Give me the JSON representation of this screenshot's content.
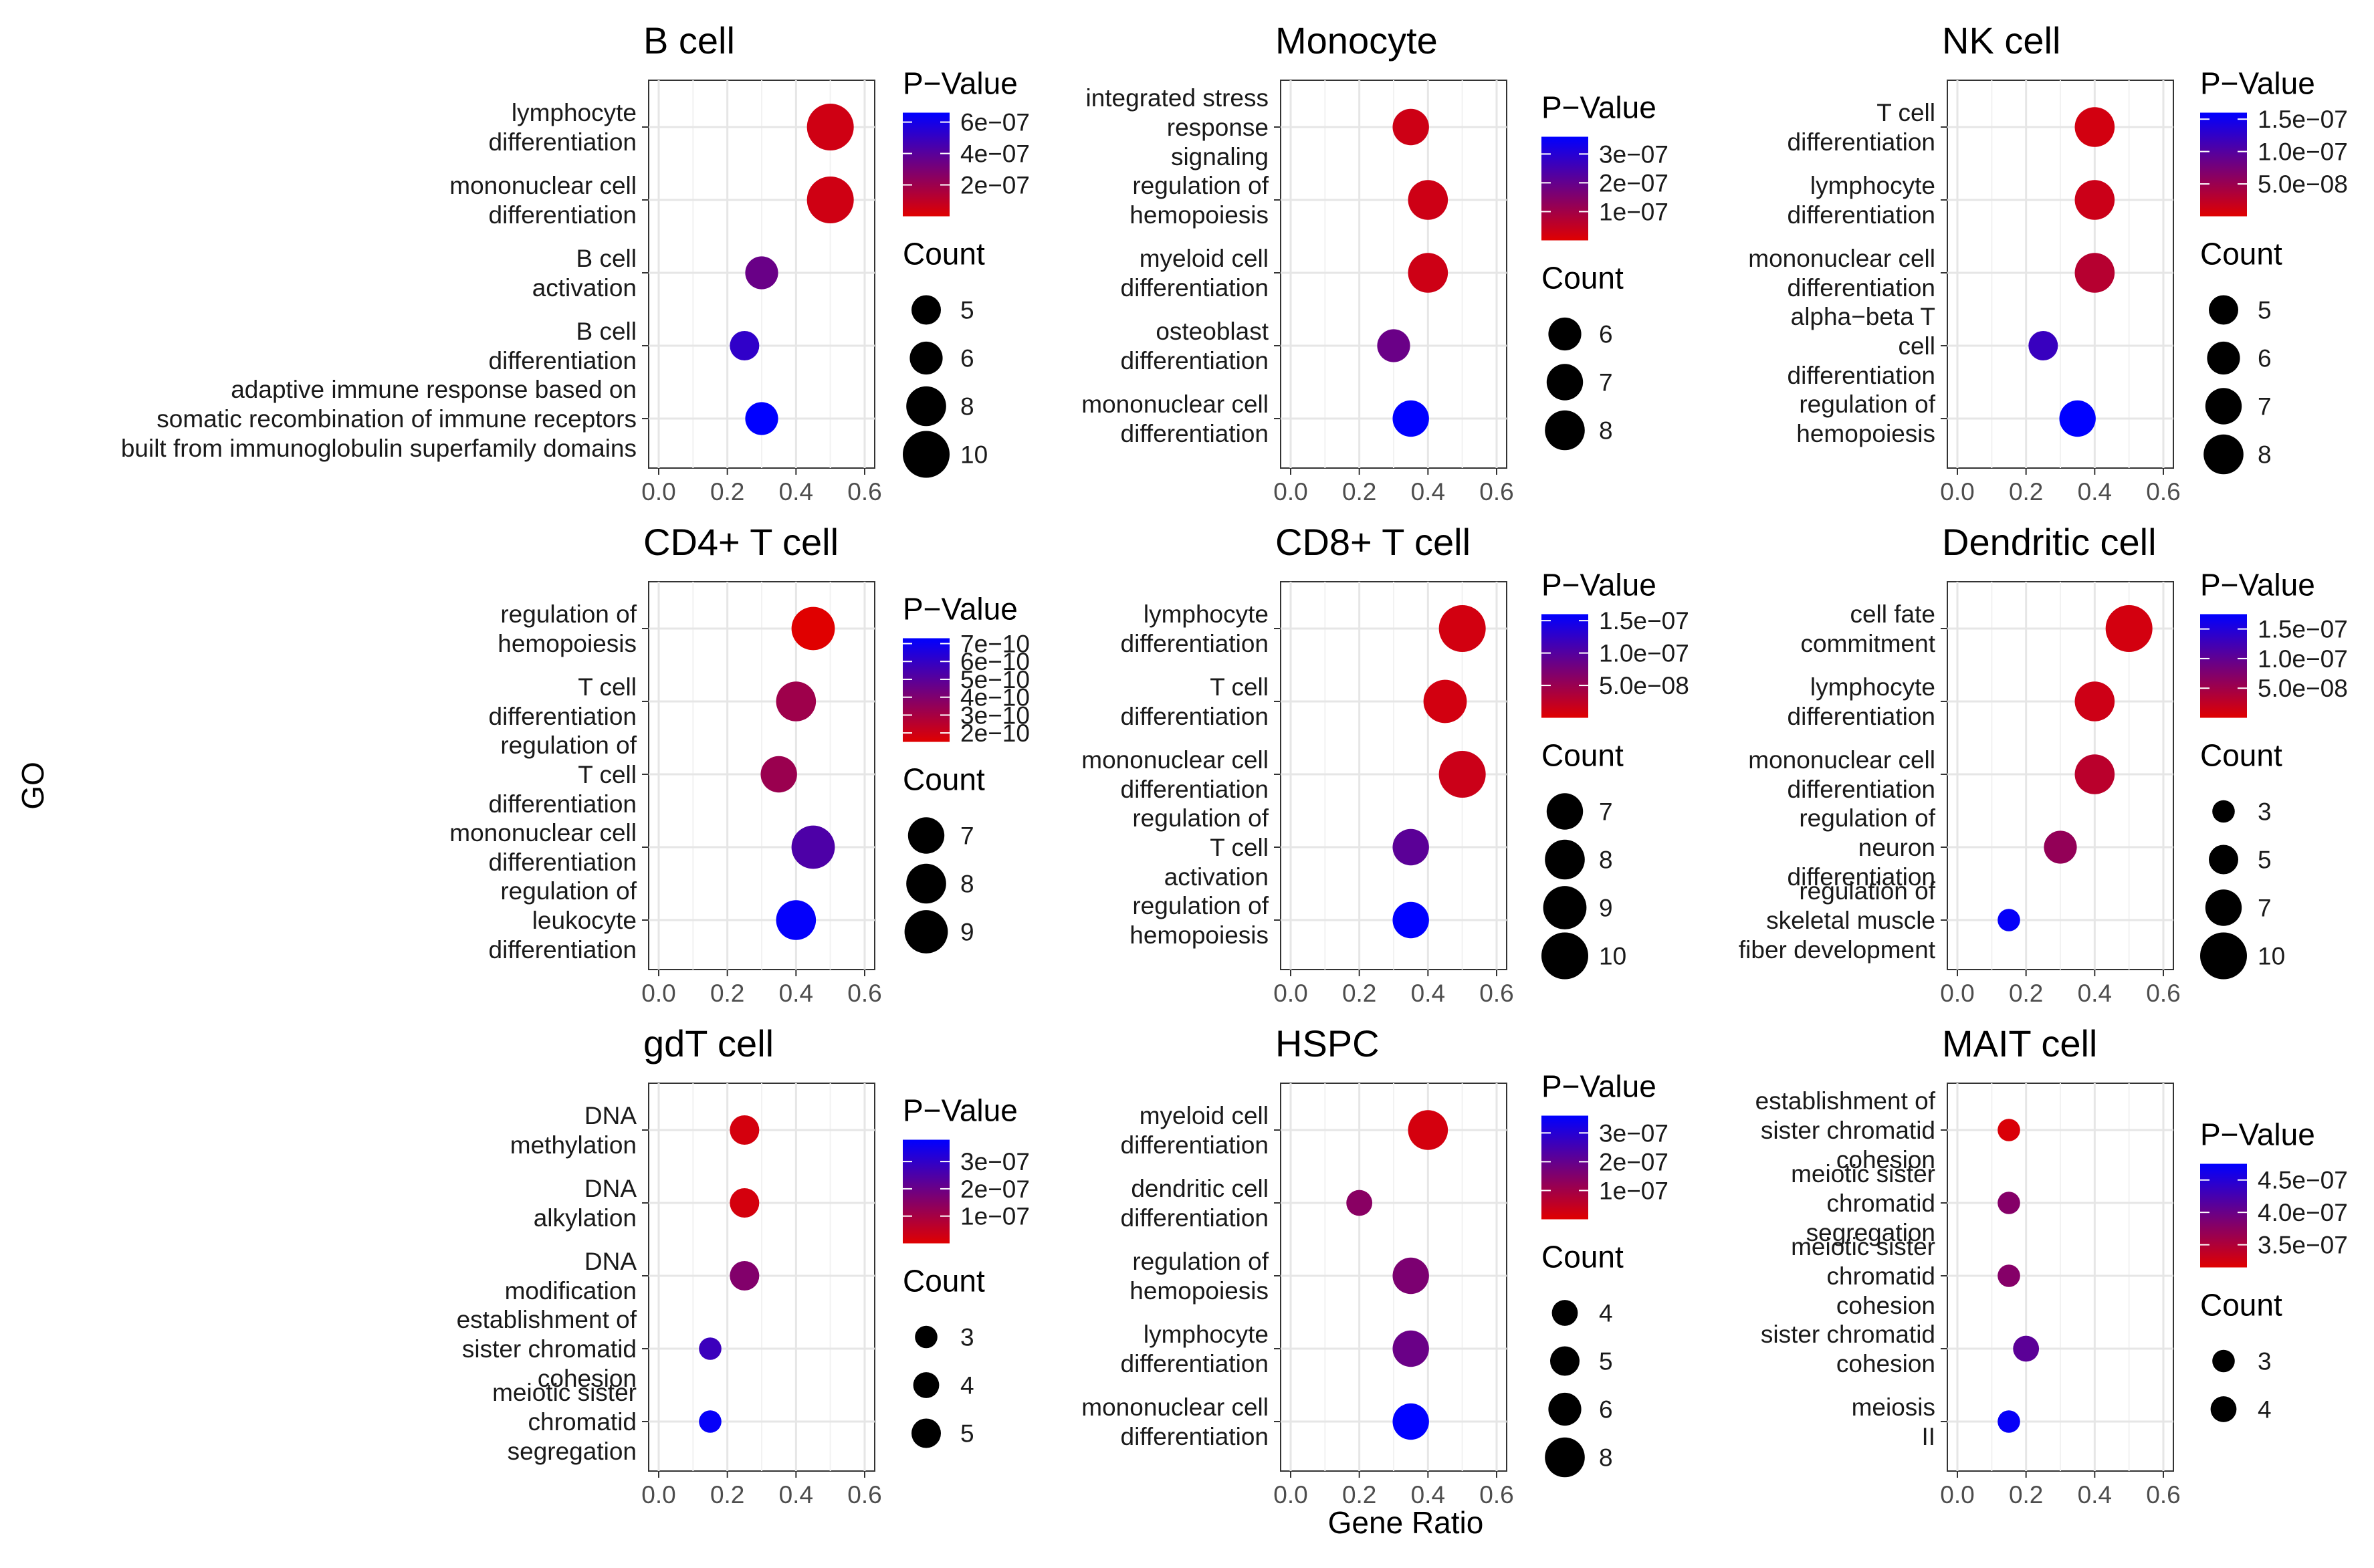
{
  "y_axis_title": "GO",
  "x_axis_title": "Gene Ratio",
  "colors": {
    "low_p": "#e00000",
    "high_p": "#0000ff"
  },
  "chart_data": [
    {
      "type": "scatter",
      "title": "B cell",
      "xlim": [
        0.0,
        0.6
      ],
      "xticks": [
        "0.0",
        "0.2",
        "0.4",
        "0.6"
      ],
      "terms": [
        {
          "label": [
            "lymphocyte",
            "differentiation"
          ],
          "x": 0.5,
          "count": 10,
          "p": 5e-08
        },
        {
          "label": [
            "mononuclear cell",
            "differentiation"
          ],
          "x": 0.5,
          "count": 10,
          "p": 5e-08
        },
        {
          "label": [
            "B cell",
            "activation"
          ],
          "x": 0.3,
          "count": 6,
          "p": 3.5e-07
        },
        {
          "label": [
            "B cell",
            "differentiation"
          ],
          "x": 0.25,
          "count": 5,
          "p": 5.2e-07
        },
        {
          "label": [
            "adaptive immune response based on",
            "somatic recombination of immune receptors",
            "built from immunoglobulin superfamily domains"
          ],
          "x": 0.3,
          "count": 6,
          "p": 6.6e-07
        }
      ],
      "pvalue_legend": {
        "title": "P−Value",
        "min": 0,
        "max": 6.6e-07,
        "ticks": [
          {
            "label": "6e−07",
            "value": 6e-07
          },
          {
            "label": "4e−07",
            "value": 4e-07
          },
          {
            "label": "2e−07",
            "value": 2e-07
          }
        ]
      },
      "count_legend": {
        "title": "Count",
        "ticks": [
          {
            "label": "5",
            "value": 5
          },
          {
            "label": "6",
            "value": 6
          },
          {
            "label": "8",
            "value": 8
          },
          {
            "label": "10",
            "value": 10
          }
        ]
      }
    },
    {
      "type": "scatter",
      "title": "Monocyte",
      "xlim": [
        0.0,
        0.6
      ],
      "xticks": [
        "0.0",
        "0.2",
        "0.4",
        "0.6"
      ],
      "terms": [
        {
          "label": [
            "integrated stress",
            "response",
            "signaling"
          ],
          "x": 0.35,
          "count": 7,
          "p": 3e-08
        },
        {
          "label": [
            "regulation of",
            "hemopoiesis"
          ],
          "x": 0.4,
          "count": 8,
          "p": 3e-08
        },
        {
          "label": [
            "myeloid cell",
            "differentiation"
          ],
          "x": 0.4,
          "count": 8,
          "p": 3e-08
        },
        {
          "label": [
            "osteoblast",
            "differentiation"
          ],
          "x": 0.3,
          "count": 6,
          "p": 1.9e-07
        },
        {
          "label": [
            "mononuclear cell",
            "differentiation"
          ],
          "x": 0.35,
          "count": 7,
          "p": 3.6e-07
        }
      ],
      "pvalue_legend": {
        "title": "P−Value",
        "min": 0,
        "max": 3.6e-07,
        "ticks": [
          {
            "label": "3e−07",
            "value": 3e-07
          },
          {
            "label": "2e−07",
            "value": 2e-07
          },
          {
            "label": "1e−07",
            "value": 1e-07
          }
        ]
      },
      "count_legend": {
        "title": "Count",
        "ticks": [
          {
            "label": "6",
            "value": 6
          },
          {
            "label": "7",
            "value": 7
          },
          {
            "label": "8",
            "value": 8
          }
        ]
      }
    },
    {
      "type": "scatter",
      "title": "NK cell",
      "xlim": [
        0.0,
        0.6
      ],
      "xticks": [
        "0.0",
        "0.2",
        "0.4",
        "0.6"
      ],
      "terms": [
        {
          "label": [
            "T cell",
            "differentiation"
          ],
          "x": 0.4,
          "count": 8,
          "p": 1e-08
        },
        {
          "label": [
            "lymphocyte",
            "differentiation"
          ],
          "x": 0.4,
          "count": 8,
          "p": 1.5e-08
        },
        {
          "label": [
            "mononuclear cell",
            "differentiation"
          ],
          "x": 0.4,
          "count": 8,
          "p": 3e-08
        },
        {
          "label": [
            "alpha−beta T",
            "cell",
            "differentiation"
          ],
          "x": 0.25,
          "count": 5,
          "p": 1.2e-07
        },
        {
          "label": [
            "regulation of",
            "hemopoiesis"
          ],
          "x": 0.35,
          "count": 7,
          "p": 1.6e-07
        }
      ],
      "pvalue_legend": {
        "title": "P−Value",
        "min": 0,
        "max": 1.6e-07,
        "ticks": [
          {
            "label": "1.5e−07",
            "value": 1.5e-07
          },
          {
            "label": "1.0e−07",
            "value": 1e-07
          },
          {
            "label": "5.0e−08",
            "value": 5e-08
          }
        ]
      },
      "count_legend": {
        "title": "Count",
        "ticks": [
          {
            "label": "5",
            "value": 5
          },
          {
            "label": "6",
            "value": 6
          },
          {
            "label": "7",
            "value": 7
          },
          {
            "label": "8",
            "value": 8
          }
        ]
      }
    },
    {
      "type": "scatter",
      "title": "CD4+ T cell",
      "xlim": [
        0.0,
        0.6
      ],
      "xticks": [
        "0.0",
        "0.2",
        "0.4",
        "0.6"
      ],
      "terms": [
        {
          "label": [
            "regulation of",
            "hemopoiesis"
          ],
          "x": 0.45,
          "count": 9,
          "p": 1e-11
        },
        {
          "label": [
            "T cell",
            "differentiation"
          ],
          "x": 0.4,
          "count": 8,
          "p": 3.2e-10
        },
        {
          "label": [
            "regulation of",
            "T cell",
            "differentiation"
          ],
          "x": 0.35,
          "count": 7,
          "p": 3.3e-10
        },
        {
          "label": [
            "mononuclear cell",
            "differentiation"
          ],
          "x": 0.45,
          "count": 9,
          "p": 5.3e-10
        },
        {
          "label": [
            "regulation of",
            "leukocyte",
            "differentiation"
          ],
          "x": 0.4,
          "count": 8,
          "p": 7.2e-10
        }
      ],
      "pvalue_legend": {
        "title": "P−Value",
        "min": 1.5e-10,
        "max": 7.3e-10,
        "ticks": [
          {
            "label": "7e−10",
            "value": 7e-10
          },
          {
            "label": "6e−10",
            "value": 6e-10
          },
          {
            "label": "5e−10",
            "value": 5e-10
          },
          {
            "label": "4e−10",
            "value": 4e-10
          },
          {
            "label": "3e−10",
            "value": 3e-10
          },
          {
            "label": "2e−10",
            "value": 2e-10
          }
        ]
      },
      "count_legend": {
        "title": "Count",
        "ticks": [
          {
            "label": "7",
            "value": 7
          },
          {
            "label": "8",
            "value": 8
          },
          {
            "label": "9",
            "value": 9
          }
        ]
      }
    },
    {
      "type": "scatter",
      "title": "CD8+ T cell",
      "xlim": [
        0.0,
        0.6
      ],
      "xticks": [
        "0.0",
        "0.2",
        "0.4",
        "0.6"
      ],
      "terms": [
        {
          "label": [
            "lymphocyte",
            "differentiation"
          ],
          "x": 0.5,
          "count": 10,
          "p": 1e-08
        },
        {
          "label": [
            "T cell",
            "differentiation"
          ],
          "x": 0.45,
          "count": 9,
          "p": 1e-08
        },
        {
          "label": [
            "mononuclear cell",
            "differentiation"
          ],
          "x": 0.5,
          "count": 10,
          "p": 1.5e-08
        },
        {
          "label": [
            "regulation of",
            "T cell",
            "activation"
          ],
          "x": 0.35,
          "count": 7,
          "p": 9.5e-08
        },
        {
          "label": [
            "regulation of",
            "hemopoiesis"
          ],
          "x": 0.35,
          "count": 7,
          "p": 1.6e-07
        }
      ],
      "pvalue_legend": {
        "title": "P−Value",
        "min": 0,
        "max": 1.6e-07,
        "ticks": [
          {
            "label": "1.5e−07",
            "value": 1.5e-07
          },
          {
            "label": "1.0e−07",
            "value": 1e-07
          },
          {
            "label": "5.0e−08",
            "value": 5e-08
          }
        ]
      },
      "count_legend": {
        "title": "Count",
        "ticks": [
          {
            "label": "7",
            "value": 7
          },
          {
            "label": "8",
            "value": 8
          },
          {
            "label": "9",
            "value": 9
          },
          {
            "label": "10",
            "value": 10
          }
        ]
      }
    },
    {
      "type": "scatter",
      "title": "Dendritic cell",
      "xlim": [
        0.0,
        0.6
      ],
      "xticks": [
        "0.0",
        "0.2",
        "0.4",
        "0.6"
      ],
      "terms": [
        {
          "label": [
            "cell fate",
            "commitment"
          ],
          "x": 0.5,
          "count": 10,
          "p": 1e-08
        },
        {
          "label": [
            "lymphocyte",
            "differentiation"
          ],
          "x": 0.4,
          "count": 8,
          "p": 1.5e-08
        },
        {
          "label": [
            "mononuclear cell",
            "differentiation"
          ],
          "x": 0.4,
          "count": 8,
          "p": 3e-08
        },
        {
          "label": [
            "regulation of",
            "neuron",
            "differentiation"
          ],
          "x": 0.3,
          "count": 6,
          "p": 6e-08
        },
        {
          "label": [
            "regulation of",
            "skeletal muscle",
            "fiber development"
          ],
          "x": 0.15,
          "count": 3,
          "p": 1.7e-07
        }
      ],
      "pvalue_legend": {
        "title": "P−Value",
        "min": 0,
        "max": 1.75e-07,
        "ticks": [
          {
            "label": "1.5e−07",
            "value": 1.5e-07
          },
          {
            "label": "1.0e−07",
            "value": 1e-07
          },
          {
            "label": "5.0e−08",
            "value": 5e-08
          }
        ]
      },
      "count_legend": {
        "title": "Count",
        "ticks": [
          {
            "label": "3",
            "value": 3
          },
          {
            "label": "5",
            "value": 5
          },
          {
            "label": "7",
            "value": 7
          },
          {
            "label": "10",
            "value": 10
          }
        ]
      }
    },
    {
      "type": "scatter",
      "title": "gdT cell",
      "xlim": [
        0.0,
        0.6
      ],
      "xticks": [
        "0.0",
        "0.2",
        "0.4",
        "0.6"
      ],
      "terms": [
        {
          "label": [
            "DNA",
            "methylation"
          ],
          "x": 0.25,
          "count": 5,
          "p": 2e-08
        },
        {
          "label": [
            "DNA",
            "alkylation"
          ],
          "x": 0.25,
          "count": 5,
          "p": 2e-08
        },
        {
          "label": [
            "DNA",
            "modification"
          ],
          "x": 0.25,
          "count": 5,
          "p": 1.6e-07
        },
        {
          "label": [
            "establishment of",
            "sister chromatid",
            "cohesion"
          ],
          "x": 0.15,
          "count": 3,
          "p": 2.8e-07
        },
        {
          "label": [
            "meiotic sister",
            "chromatid",
            "segregation"
          ],
          "x": 0.15,
          "count": 3,
          "p": 3.7e-07
        }
      ],
      "pvalue_legend": {
        "title": "P−Value",
        "min": 0,
        "max": 3.8e-07,
        "ticks": [
          {
            "label": "3e−07",
            "value": 3e-07
          },
          {
            "label": "2e−07",
            "value": 2e-07
          },
          {
            "label": "1e−07",
            "value": 1e-07
          }
        ]
      },
      "count_legend": {
        "title": "Count",
        "ticks": [
          {
            "label": "3",
            "value": 3
          },
          {
            "label": "4",
            "value": 4
          },
          {
            "label": "5",
            "value": 5
          }
        ]
      }
    },
    {
      "type": "scatter",
      "title": "HSPC",
      "xlim": [
        0.0,
        0.6
      ],
      "xticks": [
        "0.0",
        "0.2",
        "0.4",
        "0.6"
      ],
      "terms": [
        {
          "label": [
            "myeloid cell",
            "differentiation"
          ],
          "x": 0.4,
          "count": 8,
          "p": 2e-08
        },
        {
          "label": [
            "dendritic cell",
            "differentiation"
          ],
          "x": 0.2,
          "count": 4,
          "p": 1.4e-07
        },
        {
          "label": [
            "regulation of",
            "hemopoiesis"
          ],
          "x": 0.35,
          "count": 7,
          "p": 1.6e-07
        },
        {
          "label": [
            "lymphocyte",
            "differentiation"
          ],
          "x": 0.35,
          "count": 7,
          "p": 1.9e-07
        },
        {
          "label": [
            "mononuclear cell",
            "differentiation"
          ],
          "x": 0.35,
          "count": 7,
          "p": 3.6e-07
        }
      ],
      "pvalue_legend": {
        "title": "P−Value",
        "min": 0,
        "max": 3.6e-07,
        "ticks": [
          {
            "label": "3e−07",
            "value": 3e-07
          },
          {
            "label": "2e−07",
            "value": 2e-07
          },
          {
            "label": "1e−07",
            "value": 1e-07
          }
        ]
      },
      "count_legend": {
        "title": "Count",
        "ticks": [
          {
            "label": "4",
            "value": 4
          },
          {
            "label": "5",
            "value": 5
          },
          {
            "label": "6",
            "value": 6
          },
          {
            "label": "8",
            "value": 8
          }
        ]
      }
    },
    {
      "type": "scatter",
      "title": "MAIT cell",
      "xlim": [
        0.0,
        0.6
      ],
      "xticks": [
        "0.0",
        "0.2",
        "0.4",
        "0.6"
      ],
      "terms": [
        {
          "label": [
            "establishment of",
            "sister chromatid",
            "cohesion"
          ],
          "x": 0.15,
          "count": 3,
          "p": 3.2e-07
        },
        {
          "label": [
            "meiotic sister",
            "chromatid",
            "segregation"
          ],
          "x": 0.15,
          "count": 3,
          "p": 3.8e-07
        },
        {
          "label": [
            "meiotic sister",
            "chromatid",
            "cohesion"
          ],
          "x": 0.15,
          "count": 3,
          "p": 3.8e-07
        },
        {
          "label": [
            "sister chromatid",
            "cohesion"
          ],
          "x": 0.2,
          "count": 4,
          "p": 4.1e-07
        },
        {
          "label": [
            "meiosis",
            "II"
          ],
          "x": 0.15,
          "count": 3,
          "p": 4.7e-07
        }
      ],
      "pvalue_legend": {
        "title": "P−Value",
        "min": 3.15e-07,
        "max": 4.75e-07,
        "ticks": [
          {
            "label": "4.5e−07",
            "value": 4.5e-07
          },
          {
            "label": "4.0e−07",
            "value": 4e-07
          },
          {
            "label": "3.5e−07",
            "value": 3.5e-07
          }
        ]
      },
      "count_legend": {
        "title": "Count",
        "ticks": [
          {
            "label": "3",
            "value": 3
          },
          {
            "label": "4",
            "value": 4
          }
        ]
      }
    }
  ]
}
